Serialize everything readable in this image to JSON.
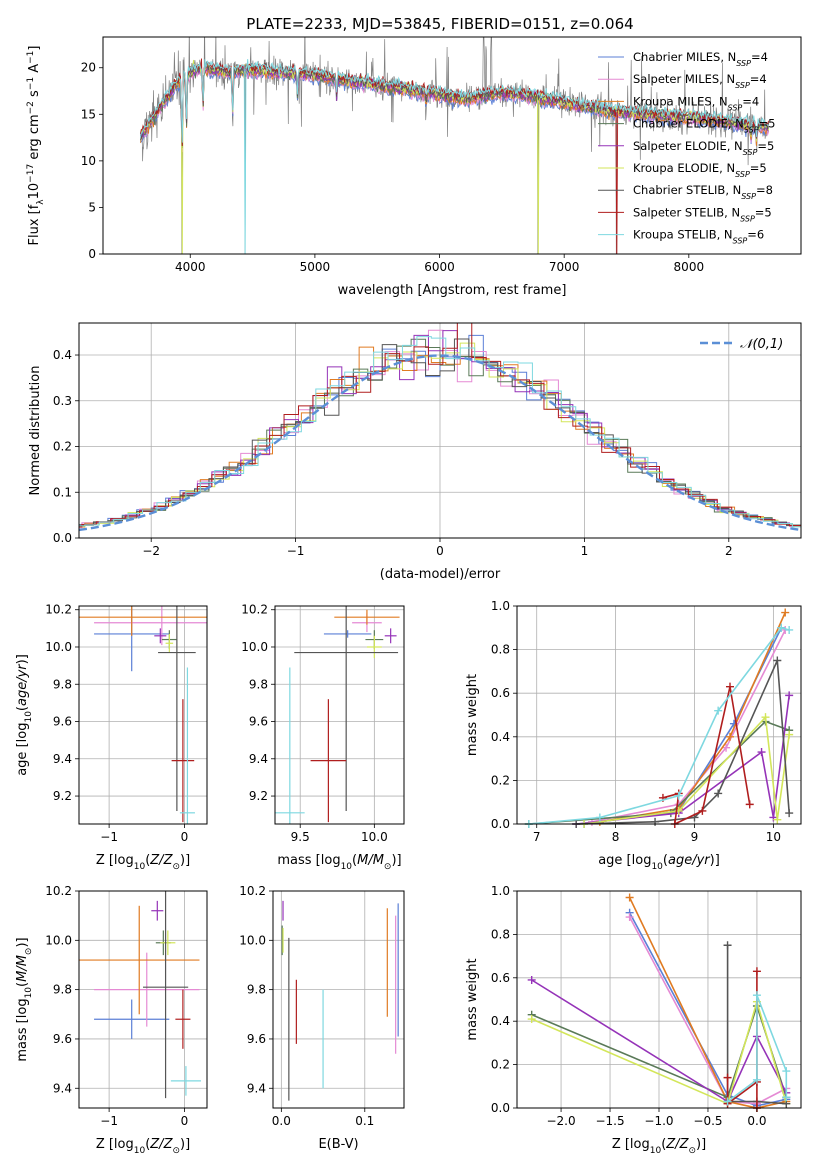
{
  "figure": {
    "title": "PLATE=2233, MJD=53845, FIBERID=0151, z=0.064"
  },
  "models": [
    {
      "label": "Chabrier MILES, N_SSP=4",
      "color": "#5b7fd6"
    },
    {
      "label": "Salpeter MILES, N_SSP=4",
      "color": "#e58ad4"
    },
    {
      "label": "Kroupa MILES, N_SSP=4",
      "color": "#e07b22"
    },
    {
      "label": "Chabrier ELODIE, N_SSP=5",
      "color": "#5a7a58"
    },
    {
      "label": "Salpeter ELODIE, N_SSP=5",
      "color": "#9533b8"
    },
    {
      "label": "Kroupa ELODIE, N_SSP=5",
      "color": "#d3e65a"
    },
    {
      "label": "Chabrier STELIB, N_SSP=8",
      "color": "#555555"
    },
    {
      "label": "Salpeter STELIB, N_SSP=5",
      "color": "#b01e1e"
    },
    {
      "label": "Kroupa STELIB, N_SSP=6",
      "color": "#7ed8e0"
    }
  ],
  "chart_data": [
    {
      "id": "spectrum",
      "type": "line",
      "xlabel": "wavelength [Angstrom, rest frame]",
      "ylabel": "Flux [f_λ 10^-17 erg cm^-2 s^-1 A^-1]",
      "xlim": [
        3300,
        8900
      ],
      "ylim": [
        0,
        23.3
      ],
      "xticks": [
        4000,
        5000,
        6000,
        7000,
        8000
      ],
      "yticks": [
        0,
        5,
        10,
        15,
        20
      ],
      "legend": "top-right",
      "continuum": [
        [
          3600,
          12.5
        ],
        [
          3700,
          14.5
        ],
        [
          3800,
          16.5
        ],
        [
          3900,
          18.5
        ],
        [
          4000,
          19.5
        ],
        [
          4100,
          20.0
        ],
        [
          4300,
          19.5
        ],
        [
          4500,
          19.8
        ],
        [
          4700,
          19.5
        ],
        [
          5000,
          19.2
        ],
        [
          5300,
          18.5
        ],
        [
          5600,
          17.9
        ],
        [
          5900,
          17.4
        ],
        [
          6200,
          16.6
        ],
        [
          6500,
          17.3
        ],
        [
          6800,
          16.8
        ],
        [
          7100,
          16.0
        ],
        [
          7400,
          15.3
        ],
        [
          7700,
          14.9
        ],
        [
          8000,
          14.7
        ],
        [
          8300,
          14.2
        ],
        [
          8600,
          13.6
        ]
      ],
      "absorption_lines": [
        [
          3934,
          10.5
        ],
        [
          3969,
          13.5
        ],
        [
          4102,
          15.5
        ],
        [
          4340,
          15.0
        ],
        [
          4861,
          17.0
        ],
        [
          5175,
          17.0
        ],
        [
          5893,
          16.0
        ],
        [
          8498,
          12.5
        ],
        [
          8542,
          12.0
        ],
        [
          8662,
          12.0
        ]
      ],
      "data_dropouts": [
        3933,
        4440,
        6790,
        7420
      ]
    },
    {
      "id": "residuals",
      "type": "bar",
      "xlabel": "(data-model)/error",
      "ylabel": "Normed distribution",
      "xlim": [
        -2.5,
        2.5
      ],
      "ylim": [
        0,
        0.47
      ],
      "xticks": [
        -2,
        -1,
        0,
        1,
        2
      ],
      "yticks": [
        0.0,
        0.1,
        0.2,
        0.3,
        0.4
      ],
      "bin_width": 0.1,
      "reference": {
        "label": "𝒩(0,1)",
        "mean": 0,
        "sigma": 1,
        "color": "#5b8fd6"
      },
      "legend": "top-right"
    },
    {
      "id": "age-vs-Z",
      "type": "scatter",
      "xlabel": "Z [log10(Z/Z⊙)]",
      "ylabel": "age [log10(age/yr)]",
      "xlim": [
        -1.4,
        0.3
      ],
      "ylim": [
        9.05,
        10.22
      ],
      "xticks": [
        -1,
        0
      ],
      "yticks": [
        9.2,
        9.4,
        9.6,
        9.8,
        10.0,
        10.2
      ],
      "points": [
        {
          "model": 0,
          "x": -0.7,
          "xerr": 0.5,
          "y": 10.07,
          "yerr": 0.2
        },
        {
          "model": 1,
          "x": -0.3,
          "xerr": 0.9,
          "y": 10.13,
          "yerr": 0.12
        },
        {
          "model": 2,
          "x": -0.7,
          "xerr": 1.0,
          "y": 10.16,
          "yerr": 0.1
        },
        {
          "model": 3,
          "x": -0.2,
          "xerr": 0.1,
          "y": 10.04,
          "yerr": 0.05
        },
        {
          "model": 4,
          "x": -0.32,
          "xerr": 0.08,
          "y": 10.06,
          "yerr": 0.04
        },
        {
          "model": 5,
          "x": -0.2,
          "xerr": 0.05,
          "y": 10.02,
          "yerr": 0.05
        },
        {
          "model": 6,
          "x": -0.1,
          "xerr": 0.25,
          "y": 9.97,
          "yerr": 0.85
        },
        {
          "model": 7,
          "x": -0.02,
          "xerr": 0.15,
          "y": 9.39,
          "yerr": 0.33
        },
        {
          "model": 8,
          "x": 0.04,
          "xerr": 0.1,
          "y": 9.11,
          "yerr": 0.78
        }
      ]
    },
    {
      "id": "age-vs-mass",
      "type": "scatter",
      "xlabel": "mass [log10(M/M⊙)]",
      "ylabel": "",
      "xlim": [
        9.33,
        10.2
      ],
      "ylim": [
        9.05,
        10.22
      ],
      "xticks": [
        9.5,
        10.0
      ],
      "yticks": [
        9.2,
        9.4,
        9.6,
        9.8,
        10.0,
        10.2
      ],
      "points": [
        {
          "model": 0,
          "x": 9.82,
          "xerr": 0.16,
          "y": 10.07,
          "yerr": 0.02
        },
        {
          "model": 1,
          "x": 9.95,
          "xerr": 0.1,
          "y": 10.13,
          "yerr": 0.05
        },
        {
          "model": 2,
          "x": 9.95,
          "xerr": 0.22,
          "y": 10.16,
          "yerr": 0.04
        },
        {
          "model": 3,
          "x": 10.0,
          "xerr": 0.06,
          "y": 10.04,
          "yerr": 0.05
        },
        {
          "model": 4,
          "x": 10.11,
          "xerr": 0.04,
          "y": 10.06,
          "yerr": 0.04
        },
        {
          "model": 5,
          "x": 10.0,
          "xerr": 0.05,
          "y": 10.0,
          "yerr": 0.06
        },
        {
          "model": 6,
          "x": 9.81,
          "xerr": 0.35,
          "y": 9.97,
          "yerr": 0.85
        },
        {
          "model": 7,
          "x": 9.69,
          "xerr": 0.12,
          "y": 9.39,
          "yerr": 0.33
        },
        {
          "model": 8,
          "x": 9.43,
          "xerr": 0.1,
          "y": 9.11,
          "yerr": 0.78
        }
      ]
    },
    {
      "id": "mass-weight-vs-age",
      "type": "line",
      "xlabel": "age [log10(age/yr)]",
      "ylabel": "mass weight",
      "xlim": [
        6.75,
        10.35
      ],
      "ylim": [
        0,
        1.0
      ],
      "xticks": [
        7,
        8,
        9,
        10
      ],
      "yticks": [
        0.0,
        0.2,
        0.4,
        0.6,
        0.8,
        1.0
      ],
      "series": [
        {
          "model": 0,
          "points": [
            [
              7.6,
              0.0
            ],
            [
              8.8,
              0.06
            ],
            [
              9.5,
              0.46
            ],
            [
              10.1,
              0.9
            ]
          ]
        },
        {
          "model": 1,
          "points": [
            [
              7.7,
              0.01
            ],
            [
              8.8,
              0.09
            ],
            [
              9.4,
              0.35
            ],
            [
              10.15,
              0.89
            ]
          ]
        },
        {
          "model": 2,
          "points": [
            [
              7.8,
              0.01
            ],
            [
              8.8,
              0.07
            ],
            [
              9.45,
              0.4
            ],
            [
              10.15,
              0.97
            ]
          ]
        },
        {
          "model": 3,
          "points": [
            [
              6.9,
              0.0
            ],
            [
              8.7,
              0.05
            ],
            [
              9.9,
              0.47
            ],
            [
              10.2,
              0.43
            ]
          ]
        },
        {
          "model": 4,
          "points": [
            [
              7.5,
              0.0
            ],
            [
              8.8,
              0.05
            ],
            [
              9.85,
              0.33
            ],
            [
              10.0,
              0.03
            ],
            [
              10.2,
              0.59
            ]
          ]
        },
        {
          "model": 5,
          "points": [
            [
              7.6,
              0.0
            ],
            [
              8.8,
              0.06
            ],
            [
              9.9,
              0.49
            ],
            [
              10.05,
              0.02
            ],
            [
              10.2,
              0.41
            ]
          ]
        },
        {
          "model": 6,
          "points": [
            [
              7.5,
              0.0
            ],
            [
              8.5,
              0.01
            ],
            [
              9.0,
              0.03
            ],
            [
              9.3,
              0.14
            ],
            [
              10.05,
              0.75
            ],
            [
              10.2,
              0.05
            ]
          ]
        },
        {
          "model": 7,
          "points": [
            [
              8.6,
              0.12
            ],
            [
              8.8,
              0.14
            ],
            [
              8.75,
              0.0
            ],
            [
              9.1,
              0.06
            ],
            [
              9.45,
              0.63
            ],
            [
              9.7,
              0.09
            ]
          ]
        },
        {
          "model": 8,
          "points": [
            [
              6.9,
              0.0
            ],
            [
              7.8,
              0.03
            ],
            [
              8.8,
              0.13
            ],
            [
              9.3,
              0.52
            ],
            [
              10.1,
              0.9
            ],
            [
              10.2,
              0.89
            ]
          ]
        }
      ]
    },
    {
      "id": "mass-vs-Z",
      "type": "scatter",
      "xlabel": "Z [log10(Z/Z⊙)]",
      "ylabel": "mass [log10(M/M⊙)]",
      "xlim": [
        -1.4,
        0.3
      ],
      "ylim": [
        9.32,
        10.2
      ],
      "xticks": [
        -1,
        0
      ],
      "yticks": [
        9.4,
        9.6,
        9.8,
        10.0,
        10.2
      ],
      "points": [
        {
          "model": 0,
          "x": -0.7,
          "xerr": 0.5,
          "y": 9.68,
          "yerr": 0.08
        },
        {
          "model": 1,
          "x": -0.5,
          "xerr": 0.7,
          "y": 9.8,
          "yerr": 0.15
        },
        {
          "model": 2,
          "x": -0.6,
          "xerr": 0.8,
          "y": 9.92,
          "yerr": 0.22
        },
        {
          "model": 3,
          "x": -0.28,
          "xerr": 0.1,
          "y": 9.99,
          "yerr": 0.05
        },
        {
          "model": 4,
          "x": -0.36,
          "xerr": 0.08,
          "y": 10.12,
          "yerr": 0.04
        },
        {
          "model": 5,
          "x": -0.22,
          "xerr": 0.1,
          "y": 9.99,
          "yerr": 0.05
        },
        {
          "model": 6,
          "x": -0.25,
          "xerr": 0.3,
          "y": 9.81,
          "yerr": 0.45
        },
        {
          "model": 7,
          "x": -0.02,
          "xerr": 0.1,
          "y": 9.68,
          "yerr": 0.12
        },
        {
          "model": 8,
          "x": 0.02,
          "xerr": 0.2,
          "y": 9.43,
          "yerr": 0.06
        }
      ]
    },
    {
      "id": "mass-vs-ebv",
      "type": "scatter",
      "xlabel": "E(B-V)",
      "ylabel": "",
      "xlim": [
        -0.01,
        0.147
      ],
      "ylim": [
        9.32,
        10.2
      ],
      "xticks": [
        0.0,
        0.1
      ],
      "yticks": [
        9.4,
        9.6,
        9.8,
        10.0,
        10.2
      ],
      "points": [
        {
          "model": 0,
          "x": 0.14,
          "xerr": 0.0,
          "y": 9.88,
          "yerr": 0.27
        },
        {
          "model": 1,
          "x": 0.137,
          "xerr": 0.0,
          "y": 9.82,
          "yerr": 0.28
        },
        {
          "model": 2,
          "x": 0.127,
          "xerr": 0.0,
          "y": 9.91,
          "yerr": 0.22
        },
        {
          "model": 3,
          "x": 0.001,
          "xerr": 0.0,
          "y": 10.0,
          "yerr": 0.06
        },
        {
          "model": 4,
          "x": 0.002,
          "xerr": 0.0,
          "y": 10.12,
          "yerr": 0.04
        },
        {
          "model": 5,
          "x": 0.002,
          "xerr": 0.0,
          "y": 10.0,
          "yerr": 0.05
        },
        {
          "model": 6,
          "x": 0.009,
          "xerr": 0.0,
          "y": 9.68,
          "yerr": 0.33
        },
        {
          "model": 7,
          "x": 0.018,
          "xerr": 0.0,
          "y": 9.71,
          "yerr": 0.13
        },
        {
          "model": 8,
          "x": 0.05,
          "xerr": 0.0,
          "y": 9.6,
          "yerr": 0.2
        }
      ]
    },
    {
      "id": "mass-weight-vs-Z",
      "type": "line",
      "xlabel": "Z [log10(Z/Z⊙)]",
      "ylabel": "mass weight",
      "xlim": [
        -2.45,
        0.45
      ],
      "ylim": [
        0,
        1.0
      ],
      "xticks": [
        -2.0,
        -1.5,
        -1.0,
        -0.5,
        0.0
      ],
      "yticks": [
        0.0,
        0.2,
        0.4,
        0.6,
        0.8,
        1.0
      ],
      "series": [
        {
          "model": 0,
          "points": [
            [
              -1.3,
              0.9
            ],
            [
              -0.3,
              0.06
            ],
            [
              0.0,
              0.01
            ],
            [
              0.3,
              0.04
            ]
          ]
        },
        {
          "model": 1,
          "points": [
            [
              -1.3,
              0.88
            ],
            [
              -0.3,
              0.03
            ],
            [
              0.0,
              0.02
            ],
            [
              0.3,
              0.09
            ]
          ]
        },
        {
          "model": 2,
          "points": [
            [
              -1.3,
              0.97
            ],
            [
              -0.3,
              0.03
            ],
            [
              0.0,
              0.0
            ],
            [
              0.3,
              0.03
            ]
          ]
        },
        {
          "model": 3,
          "points": [
            [
              -2.3,
              0.43
            ],
            [
              -0.3,
              0.05
            ],
            [
              0.0,
              0.47
            ],
            [
              0.3,
              0.05
            ]
          ]
        },
        {
          "model": 4,
          "points": [
            [
              -2.3,
              0.59
            ],
            [
              -0.3,
              0.03
            ],
            [
              0.0,
              0.33
            ],
            [
              0.3,
              0.07
            ]
          ]
        },
        {
          "model": 5,
          "points": [
            [
              -2.3,
              0.41
            ],
            [
              -0.3,
              0.02
            ],
            [
              0.0,
              0.49
            ],
            [
              0.3,
              0.02
            ]
          ]
        },
        {
          "model": 6,
          "points": [
            [
              -0.3,
              0.75
            ],
            [
              -0.3,
              0.03
            ],
            [
              0.0,
              0.03
            ],
            [
              0.3,
              0.02
            ]
          ]
        },
        {
          "model": 7,
          "points": [
            [
              -0.3,
              0.14
            ],
            [
              -0.3,
              0.02
            ],
            [
              0.0,
              0.12
            ],
            [
              0.0,
              0.63
            ],
            [
              0.0,
              0.0
            ]
          ]
        },
        {
          "model": 8,
          "points": [
            [
              -0.3,
              0.03
            ],
            [
              0.0,
              0.13
            ],
            [
              0.0,
              0.52
            ],
            [
              0.3,
              0.17
            ],
            [
              0.3,
              0.05
            ]
          ]
        }
      ]
    }
  ]
}
